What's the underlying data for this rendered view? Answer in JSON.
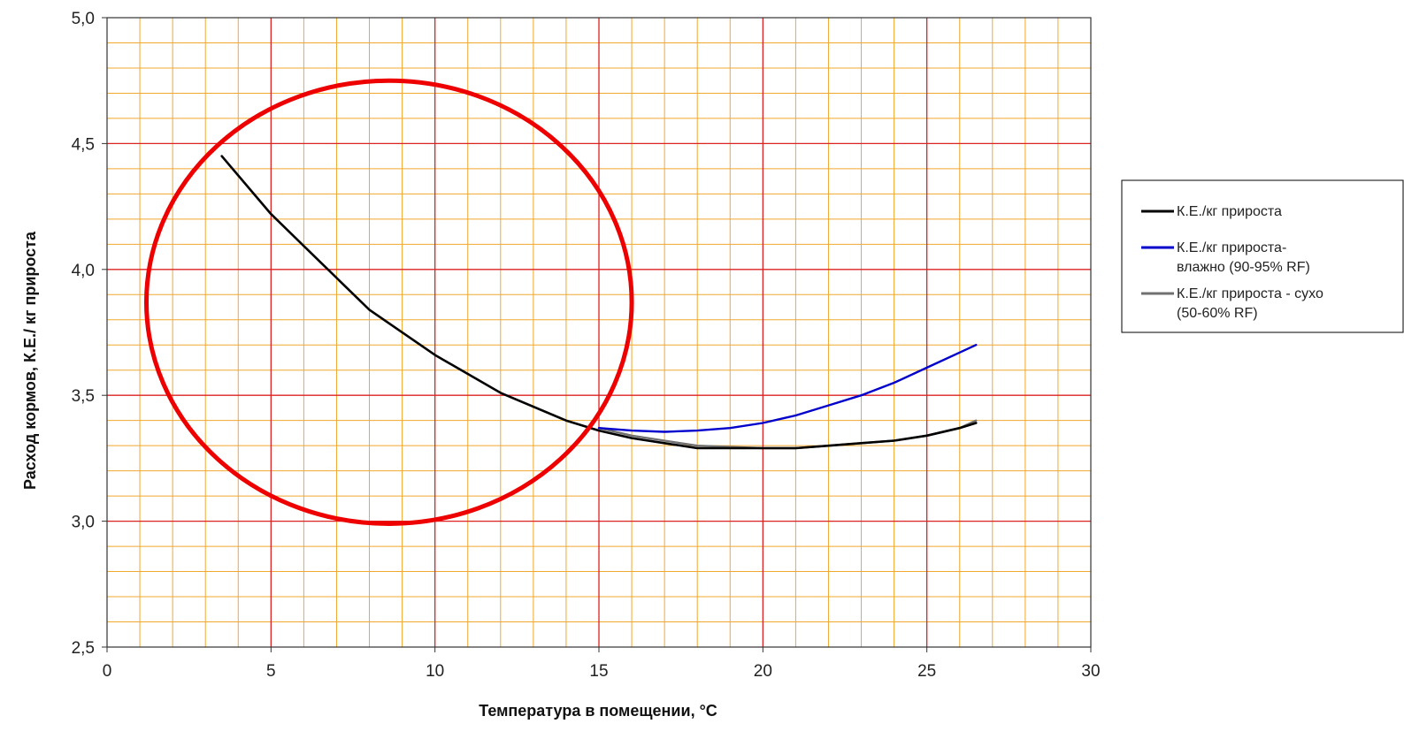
{
  "chart_data": {
    "type": "line",
    "xlabel": "Температура в помещении, °C",
    "ylabel": "Расход кормов, К.Е./ кг прироста",
    "xlim": [
      0,
      30
    ],
    "ylim": [
      2.5,
      5.0
    ],
    "x_ticks": [
      "0",
      "5",
      "10",
      "15",
      "20",
      "25",
      "30"
    ],
    "y_ticks": [
      "2,5",
      "3,0",
      "3,5",
      "4,0",
      "4,5",
      "5,0"
    ],
    "grid": true,
    "legend_position": "right",
    "series": [
      {
        "name_lines": [
          "К.Е./кг прироста"
        ],
        "color": "#000000",
        "x": [
          3.5,
          5,
          6.5,
          8,
          10,
          12,
          14,
          15,
          16,
          17,
          18,
          19,
          20,
          21,
          22,
          23,
          24,
          25,
          26,
          26.5
        ],
        "y": [
          4.45,
          4.22,
          4.03,
          3.84,
          3.66,
          3.51,
          3.4,
          3.36,
          3.33,
          3.31,
          3.29,
          3.29,
          3.29,
          3.29,
          3.3,
          3.31,
          3.32,
          3.34,
          3.37,
          3.39
        ]
      },
      {
        "name_lines": [
          "К.Е./кг прироста-",
          "влажно (90-95% RF)"
        ],
        "color": "#0000cc",
        "x": [
          15,
          16,
          17,
          18,
          19,
          20,
          21,
          22,
          23,
          24,
          25,
          26,
          26.5
        ],
        "y": [
          3.37,
          3.36,
          3.355,
          3.36,
          3.37,
          3.39,
          3.42,
          3.46,
          3.5,
          3.55,
          3.61,
          3.67,
          3.7
        ]
      },
      {
        "name_lines": [
          "К.Е./кг прироста - сухо",
          "(50-60% RF)"
        ],
        "color": "#707070",
        "x": [
          15,
          16,
          17,
          18,
          19,
          20,
          21,
          22,
          23,
          24,
          25,
          26,
          26.5
        ],
        "y": [
          3.37,
          3.34,
          3.32,
          3.3,
          3.295,
          3.29,
          3.29,
          3.3,
          3.31,
          3.32,
          3.34,
          3.37,
          3.4
        ]
      }
    ],
    "annotation": {
      "shape": "circle",
      "color": "#ee0000",
      "cx": 8.6,
      "cy": 3.87,
      "rx": 7.4,
      "ry": 0.88
    },
    "colors": {
      "plot_bg": "#ffffff",
      "minor_grid": "#f0a830",
      "major_grid": "#dd2222",
      "legend_border": "#000000"
    }
  }
}
